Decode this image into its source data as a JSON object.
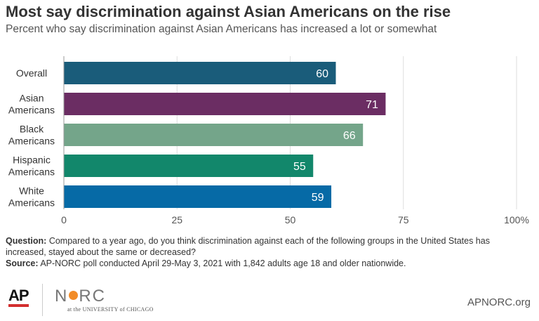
{
  "chart_data": {
    "type": "bar",
    "orientation": "horizontal",
    "title": "Most say discrimination against Asian Americans on the rise",
    "subtitle": "Percent who say discrimination against Asian Americans has increased a lot or somewhat",
    "categories": [
      [
        "Overall"
      ],
      [
        "Asian",
        "Americans"
      ],
      [
        "Black",
        "Americans"
      ],
      [
        "Hispanic",
        "Americans"
      ],
      [
        "White",
        "Americans"
      ]
    ],
    "values": [
      60,
      71,
      66,
      55,
      59
    ],
    "colors": [
      "#1a5c7a",
      "#6b2d63",
      "#74a58a",
      "#12876b",
      "#066aa6"
    ],
    "xlim": [
      0,
      100
    ],
    "ticks": [
      0,
      25,
      50,
      75,
      100
    ],
    "tick_labels": [
      "0",
      "25",
      "50",
      "75",
      "100%"
    ],
    "grid": true
  },
  "notes": {
    "question_label": "Question:",
    "question_text": " Compared to a year ago, do you think discrimination against each of the following groups in the United States has increased, stayed about the same or decreased?",
    "source_label": "Source:",
    "source_text": " AP-NORC poll conducted April 29-May 3, 2021 with 1,842 adults age 18 and older nationwide."
  },
  "footer": {
    "ap_logo": "AP",
    "norc_logo_left": "N",
    "norc_logo_right": "RC",
    "norc_tagline": "at the UNIVERSITY of CHICAGO",
    "site": "APNORC.org"
  }
}
